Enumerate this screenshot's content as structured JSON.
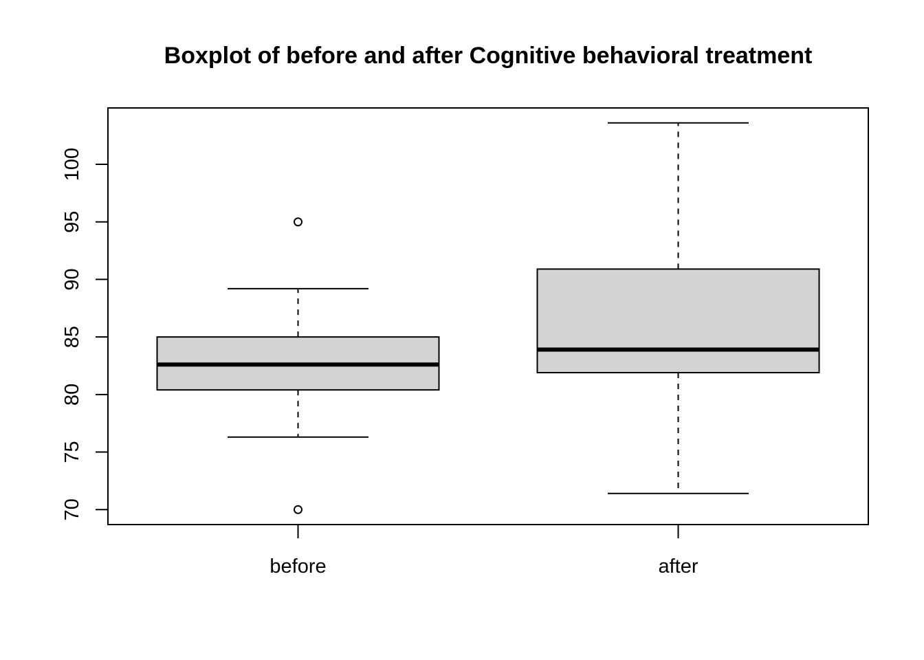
{
  "chart_data": {
    "type": "boxplot",
    "title": "Boxplot of before and after Cognitive behavioral treatment",
    "xlabel": "",
    "ylabel": "",
    "ylim": [
      68.7,
      104.9
    ],
    "y_ticks": [
      70,
      75,
      80,
      85,
      90,
      95,
      100
    ],
    "categories": [
      "before",
      "after"
    ],
    "boxes": [
      {
        "category": "before",
        "whisker_low": 76.3,
        "q1": 80.4,
        "median": 82.6,
        "q3": 85.0,
        "whisker_high": 89.2,
        "outliers": [
          95.0,
          70.0
        ]
      },
      {
        "category": "after",
        "whisker_low": 71.4,
        "q1": 81.9,
        "median": 83.9,
        "q3": 90.9,
        "whisker_high": 103.6,
        "outliers": []
      }
    ],
    "box_fill": "#d3d3d3",
    "grid": false
  }
}
